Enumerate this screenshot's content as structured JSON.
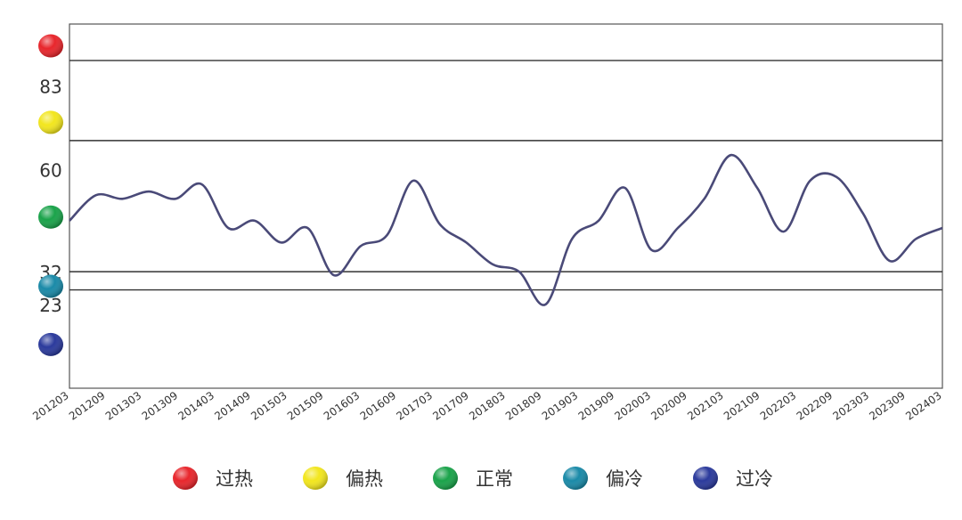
{
  "chart_data": {
    "type": "line",
    "title": "",
    "xlabel": "",
    "ylabel": "",
    "ylim": [
      0,
      100
    ],
    "threshold_lines": [
      90,
      68,
      32,
      27
    ],
    "y_ticks": [
      {
        "label": "83",
        "value": 83
      },
      {
        "label": "60",
        "value": 60
      },
      {
        "label": "32",
        "value": 32
      },
      {
        "label": "23",
        "value": 23
      }
    ],
    "zone_markers": [
      {
        "name": "过热",
        "value": 94,
        "color": "#e8262c"
      },
      {
        "name": "偏热",
        "value": 73,
        "color": "#f2e61e"
      },
      {
        "name": "正常",
        "value": 47,
        "color": "#1aa34a"
      },
      {
        "name": "偏冷",
        "value": 28,
        "color": "#1a8aa8"
      },
      {
        "name": "过冷",
        "value": 12,
        "color": "#2b3a9c"
      }
    ],
    "x_tick_labels": [
      "201203",
      "201209",
      "201303",
      "201309",
      "201403",
      "201409",
      "201503",
      "201509",
      "201603",
      "201609",
      "201703",
      "201709",
      "201803",
      "201809",
      "201903",
      "201909",
      "202003",
      "202009",
      "202103",
      "202109",
      "202203",
      "202209",
      "202303",
      "202309",
      "202403"
    ],
    "series": [
      {
        "color": "#4a4a78",
        "values": [
          46,
          53,
          52,
          54,
          52,
          56,
          44,
          46,
          40,
          44,
          31,
          39,
          42,
          57,
          45,
          40,
          34,
          32,
          23,
          41,
          46,
          55,
          38,
          44,
          52,
          64,
          55,
          43,
          57,
          58,
          48,
          35,
          41,
          44
        ]
      }
    ],
    "legend": {
      "position": "bottom",
      "items": [
        {
          "label": "过热",
          "color": "#e8262c"
        },
        {
          "label": "偏热",
          "color": "#f2e61e"
        },
        {
          "label": "正常",
          "color": "#1aa34a"
        },
        {
          "label": "偏冷",
          "color": "#1a8aa8"
        },
        {
          "label": "过冷",
          "color": "#2b3a9c"
        }
      ]
    }
  }
}
